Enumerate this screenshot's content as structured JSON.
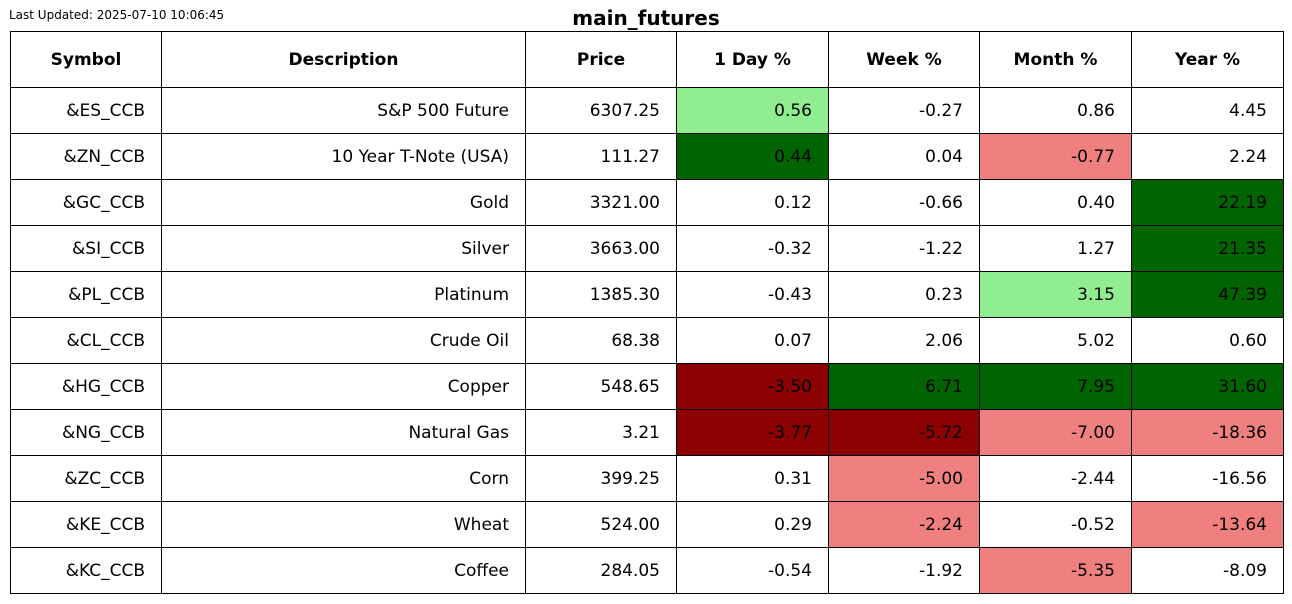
{
  "last_updated": "Last Updated: 2025-07-10 10:06:45",
  "title": "main_futures",
  "colors": {
    "strong_positive": "#006400",
    "positive": "#90ee90",
    "negative": "#f08080",
    "strong_negative": "#8b0000",
    "neutral": "#ffffff"
  },
  "chart_data": {
    "type": "table",
    "title": "main_futures",
    "columns": [
      "Symbol",
      "Description",
      "Price",
      "1 Day %",
      "Week %",
      "Month %",
      "Year %"
    ],
    "rows": [
      {
        "cells": [
          "&ES_CCB",
          "S&P 500 Future",
          "6307.25",
          "0.56",
          "-0.27",
          "0.86",
          "4.45"
        ],
        "shading": [
          "neutral",
          "neutral",
          "neutral",
          "positive",
          "neutral",
          "neutral",
          "neutral"
        ]
      },
      {
        "cells": [
          "&ZN_CCB",
          "10 Year T-Note (USA)",
          "111.27",
          "0.44",
          "0.04",
          "-0.77",
          "2.24"
        ],
        "shading": [
          "neutral",
          "neutral",
          "neutral",
          "strong_positive",
          "neutral",
          "negative",
          "neutral"
        ]
      },
      {
        "cells": [
          "&GC_CCB",
          "Gold",
          "3321.00",
          "0.12",
          "-0.66",
          "0.40",
          "22.19"
        ],
        "shading": [
          "neutral",
          "neutral",
          "neutral",
          "neutral",
          "neutral",
          "neutral",
          "strong_positive"
        ]
      },
      {
        "cells": [
          "&SI_CCB",
          "Silver",
          "3663.00",
          "-0.32",
          "-1.22",
          "1.27",
          "21.35"
        ],
        "shading": [
          "neutral",
          "neutral",
          "neutral",
          "neutral",
          "neutral",
          "neutral",
          "strong_positive"
        ]
      },
      {
        "cells": [
          "&PL_CCB",
          "Platinum",
          "1385.30",
          "-0.43",
          "0.23",
          "3.15",
          "47.39"
        ],
        "shading": [
          "neutral",
          "neutral",
          "neutral",
          "neutral",
          "neutral",
          "positive",
          "strong_positive"
        ]
      },
      {
        "cells": [
          "&CL_CCB",
          "Crude Oil",
          "68.38",
          "0.07",
          "2.06",
          "5.02",
          "0.60"
        ],
        "shading": [
          "neutral",
          "neutral",
          "neutral",
          "neutral",
          "neutral",
          "neutral",
          "neutral"
        ]
      },
      {
        "cells": [
          "&HG_CCB",
          "Copper",
          "548.65",
          "-3.50",
          "6.71",
          "7.95",
          "31.60"
        ],
        "shading": [
          "neutral",
          "neutral",
          "neutral",
          "strong_negative",
          "strong_positive",
          "strong_positive",
          "strong_positive"
        ]
      },
      {
        "cells": [
          "&NG_CCB",
          "Natural Gas",
          "3.21",
          "-3.77",
          "-5.72",
          "-7.00",
          "-18.36"
        ],
        "shading": [
          "neutral",
          "neutral",
          "neutral",
          "strong_negative",
          "strong_negative",
          "negative",
          "negative"
        ]
      },
      {
        "cells": [
          "&ZC_CCB",
          "Corn",
          "399.25",
          "0.31",
          "-5.00",
          "-2.44",
          "-16.56"
        ],
        "shading": [
          "neutral",
          "neutral",
          "neutral",
          "neutral",
          "negative",
          "neutral",
          "neutral"
        ]
      },
      {
        "cells": [
          "&KE_CCB",
          "Wheat",
          "524.00",
          "0.29",
          "-2.24",
          "-0.52",
          "-13.64"
        ],
        "shading": [
          "neutral",
          "neutral",
          "neutral",
          "neutral",
          "negative",
          "neutral",
          "negative"
        ]
      },
      {
        "cells": [
          "&KC_CCB",
          "Coffee",
          "284.05",
          "-0.54",
          "-1.92",
          "-5.35",
          "-8.09"
        ],
        "shading": [
          "neutral",
          "neutral",
          "neutral",
          "neutral",
          "neutral",
          "negative",
          "neutral"
        ]
      }
    ]
  }
}
